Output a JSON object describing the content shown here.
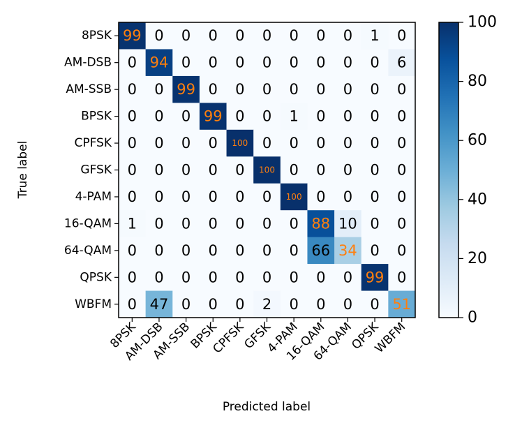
{
  "chart_data": {
    "type": "heatmap",
    "title": "",
    "xlabel": "Predicted label",
    "ylabel": "True label",
    "x_categories": [
      "8PSK",
      "AM-DSB",
      "AM-SSB",
      "BPSK",
      "CPFSK",
      "GFSK",
      "4-PAM",
      "16-QAM",
      "64-QAM",
      "QPSK",
      "WBFM"
    ],
    "y_categories": [
      "8PSK",
      "AM-DSB",
      "AM-SSB",
      "BPSK",
      "CPFSK",
      "GFSK",
      "4-PAM",
      "16-QAM",
      "64-QAM",
      "QPSK",
      "WBFM"
    ],
    "values": [
      [
        99,
        0,
        0,
        0,
        0,
        0,
        0,
        0,
        0,
        1,
        0
      ],
      [
        0,
        94,
        0,
        0,
        0,
        0,
        0,
        0,
        0,
        0,
        6
      ],
      [
        0,
        0,
        99,
        0,
        0,
        0,
        0,
        0,
        0,
        0,
        0
      ],
      [
        0,
        0,
        0,
        99,
        0,
        0,
        1,
        0,
        0,
        0,
        0
      ],
      [
        0,
        0,
        0,
        0,
        100,
        0,
        0,
        0,
        0,
        0,
        0
      ],
      [
        0,
        0,
        0,
        0,
        0,
        100,
        0,
        0,
        0,
        0,
        0
      ],
      [
        0,
        0,
        0,
        0,
        0,
        0,
        100,
        0,
        0,
        0,
        0
      ],
      [
        1,
        0,
        0,
        0,
        0,
        0,
        0,
        88,
        10,
        0,
        0
      ],
      [
        0,
        0,
        0,
        0,
        0,
        0,
        0,
        66,
        34,
        0,
        0
      ],
      [
        0,
        0,
        0,
        0,
        0,
        0,
        0,
        0,
        0,
        99,
        0
      ],
      [
        0,
        47,
        0,
        0,
        0,
        2,
        0,
        0,
        0,
        0,
        51
      ]
    ],
    "colorbar": {
      "min": 0,
      "max": 100,
      "ticks": [
        0,
        20,
        40,
        60,
        80,
        100
      ],
      "colormap": "Blues"
    },
    "diagonal_text_color": "#ff7f0e",
    "offdiagonal_text_color": "#000000",
    "grid": false
  }
}
